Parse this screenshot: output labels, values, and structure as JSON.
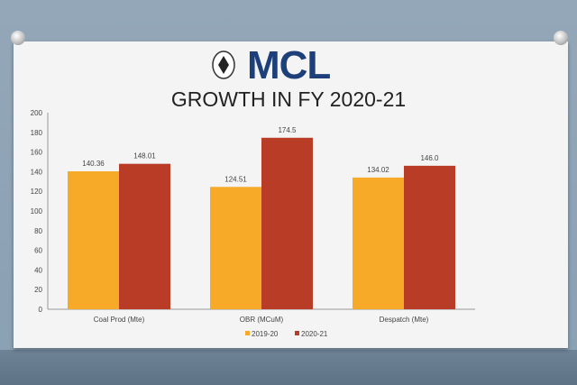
{
  "logo": {
    "text": "MCL"
  },
  "chart_data": {
    "type": "bar",
    "title": "GROWTH IN FY 2020-21",
    "categories": [
      "Coal Prod (Mte)",
      "OBR (MCuM)",
      "Despatch  (Mte)"
    ],
    "series": [
      {
        "name": "2019-20",
        "values": [
          140.36,
          124.51,
          134.02
        ],
        "labels": [
          "140.36",
          "124.51",
          "134.02"
        ],
        "color": "#f7a928"
      },
      {
        "name": "2020-21",
        "values": [
          148.01,
          174.5,
          146.0
        ],
        "labels": [
          "148.01",
          "174.5",
          "146.0"
        ],
        "color": "#b83c26"
      }
    ],
    "ylim": [
      0,
      200
    ],
    "yticks": [
      0,
      20,
      40,
      60,
      80,
      100,
      120,
      140,
      160,
      180,
      200
    ],
    "grid": false,
    "legend": "bottom"
  }
}
